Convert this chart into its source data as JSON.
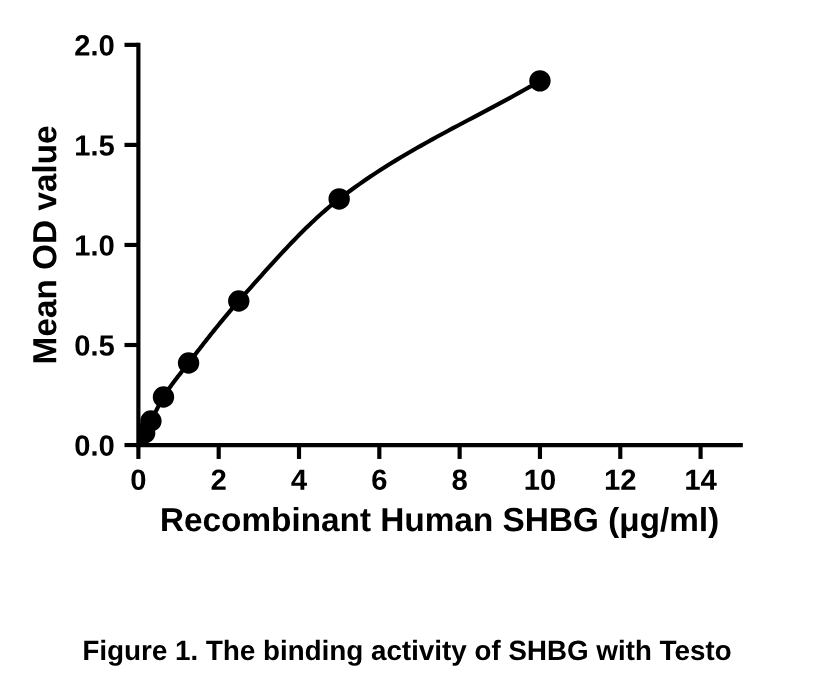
{
  "chart_data": {
    "type": "scatter",
    "xlabel": "Recombinant Human SHBG (μg/ml)",
    "ylabel": "Mean OD value",
    "annotations": [
      "Figure 1. The binding activity of SHBG with Testo"
    ],
    "series": [
      {
        "color": "#000000",
        "marker": "circle",
        "x": [
          0.156,
          0.3125,
          0.625,
          1.25,
          2.5,
          5,
          10
        ],
        "values": [
          0.06,
          0.12,
          0.24,
          0.41,
          0.72,
          1.23,
          1.82
        ]
      },
      {
        "type": "line",
        "color": "#000000",
        "line_style": "solid",
        "x": [
          0.156,
          0.3125,
          0.625,
          1.25,
          2.5,
          5,
          10
        ],
        "values": [
          0.06,
          0.12,
          0.24,
          0.41,
          0.72,
          1.23,
          1.82
        ]
      }
    ],
    "xlim": [
      0,
      15
    ],
    "xticks": [
      0,
      2,
      4,
      6,
      8,
      10,
      12,
      14
    ],
    "ylim": [
      0,
      2
    ],
    "yticks": [
      {
        "value": 0,
        "label": "0.0"
      },
      {
        "value": 0.5,
        "label": "0.5"
      },
      {
        "value": 1,
        "label": "1.0"
      },
      {
        "value": 1.5,
        "label": "1.5"
      },
      {
        "value": 2,
        "label": "2.0"
      }
    ],
    "grid": false
  }
}
